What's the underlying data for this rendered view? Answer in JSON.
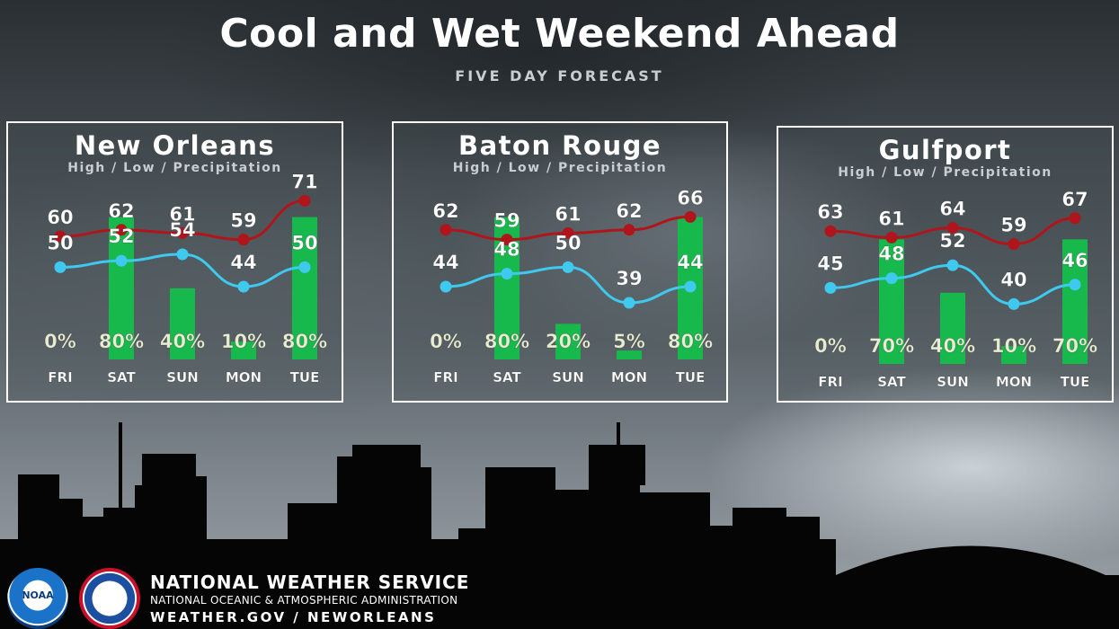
{
  "header": {
    "title": "Cool and Wet Weekend Ahead",
    "subtitle": "FIVE DAY FORECAST"
  },
  "legend_text": "High / Low / Precipitation",
  "colors": {
    "high_line": "#b0151b",
    "low_line": "#3fc9ee",
    "precip_bar": "#17b84c",
    "panel_border": "#ffffff"
  },
  "chart_data": [
    {
      "type": "line",
      "title": "New Orleans",
      "categories": [
        "FRI",
        "SAT",
        "SUN",
        "MON",
        "TUE"
      ],
      "series": [
        {
          "name": "High",
          "values": [
            60,
            62,
            61,
            59,
            71
          ]
        },
        {
          "name": "Low",
          "values": [
            50,
            52,
            54,
            44,
            50
          ]
        },
        {
          "name": "Precipitation",
          "values": [
            0,
            80,
            40,
            10,
            80
          ],
          "labels": [
            "0%",
            "80%",
            "40%",
            "10%",
            "80%"
          ]
        }
      ]
    },
    {
      "type": "line",
      "title": "Baton Rouge",
      "categories": [
        "FRI",
        "SAT",
        "SUN",
        "MON",
        "TUE"
      ],
      "series": [
        {
          "name": "High",
          "values": [
            62,
            59,
            61,
            62,
            66
          ]
        },
        {
          "name": "Low",
          "values": [
            44,
            48,
            50,
            39,
            44
          ]
        },
        {
          "name": "Precipitation",
          "values": [
            0,
            80,
            20,
            5,
            80
          ],
          "labels": [
            "0%",
            "80%",
            "20%",
            "5%",
            "80%"
          ]
        }
      ]
    },
    {
      "type": "line",
      "title": "Gulfport",
      "categories": [
        "FRI",
        "SAT",
        "SUN",
        "MON",
        "TUE"
      ],
      "series": [
        {
          "name": "High",
          "values": [
            63,
            61,
            64,
            59,
            67
          ]
        },
        {
          "name": "Low",
          "values": [
            45,
            48,
            52,
            40,
            46
          ]
        },
        {
          "name": "Precipitation",
          "values": [
            0,
            70,
            40,
            10,
            70
          ],
          "labels": [
            "0%",
            "70%",
            "40%",
            "10%",
            "70%"
          ]
        }
      ]
    }
  ],
  "footer": {
    "logo1": "noaa-logo-icon",
    "logo2": "nws-logo-icon",
    "logo1_text": "NOAA",
    "agency": "NATIONAL WEATHER SERVICE",
    "parent": "NATIONAL OCEANIC & ATMOSPHERIC ADMINISTRATION",
    "url": "WEATHER.GOV / NEWORLEANS"
  }
}
